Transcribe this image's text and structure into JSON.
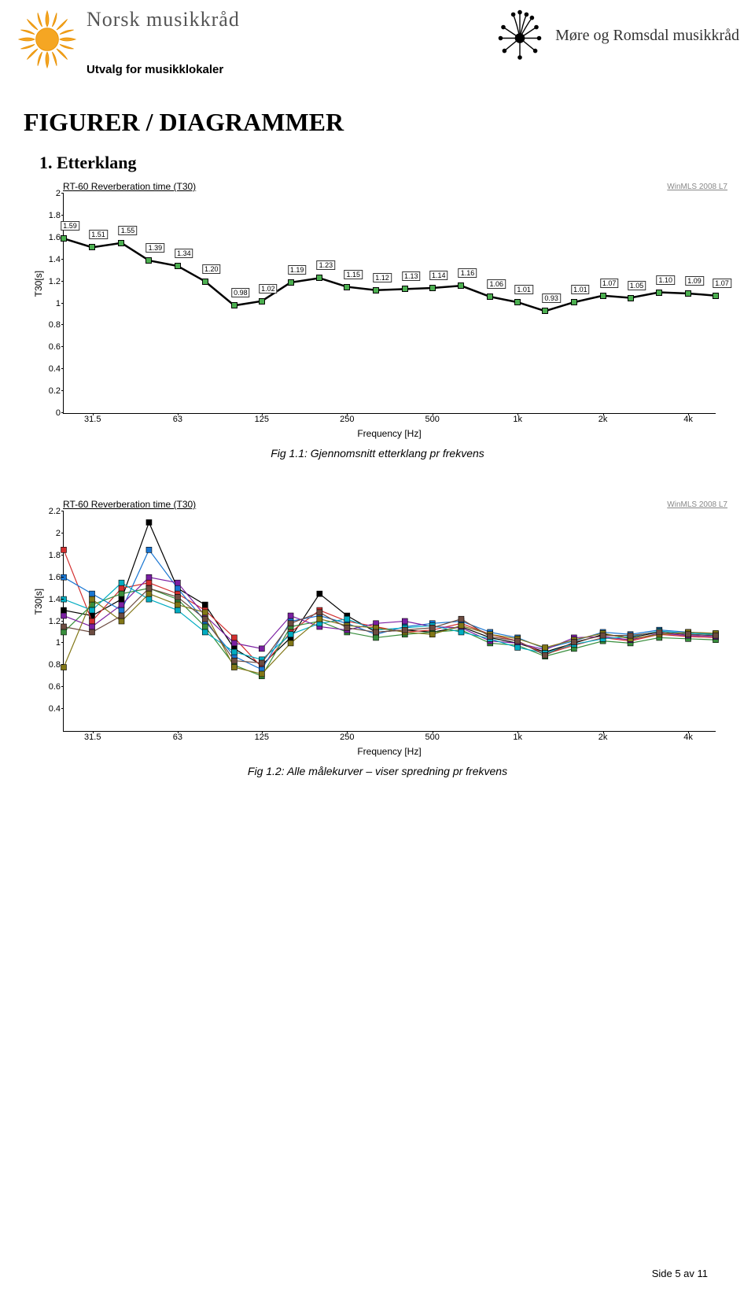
{
  "header": {
    "org1": "Norsk musikkråd",
    "subtitle": "Utvalg for musikklokaler",
    "org2": "Møre og Romsdal musikkråd"
  },
  "titles": {
    "main": "FIGURER / DIAGRAMMER",
    "section1": "1. Etterklang"
  },
  "chart1": {
    "type": "line",
    "title": "RT-60 Reverberation time (T30)",
    "watermark": "WinMLS 2008 L7",
    "ylabel": "T30[s]",
    "xlabel": "Frequency [Hz]",
    "ylim": [
      0,
      2.0
    ],
    "yticks": [
      0,
      0.2,
      0.4,
      0.6,
      0.8,
      1.0,
      1.2,
      1.4,
      1.6,
      1.8,
      2.0
    ],
    "xticks_labels": [
      "31.5",
      "63",
      "125",
      "250",
      "500",
      "1k",
      "2k",
      "4k"
    ],
    "xticks_logpos": [
      1.5,
      1.8,
      2.097,
      2.398,
      2.699,
      3.0,
      3.301,
      3.602
    ],
    "x_log_min": 1.398,
    "x_log_max": 3.699,
    "line_color": "#000000",
    "marker_color": "#4caf50",
    "background_color": "#ffffff",
    "point_labels": [
      "1.59",
      "1.51",
      "1.55",
      "1.39",
      "1.34",
      "1.20",
      "0.98",
      "1.02",
      "1.19",
      "1.23",
      "1.15",
      "1.12",
      "1.13",
      "1.14",
      "1.16",
      "1.06",
      "1.01",
      "0.93",
      "1.01",
      "1.07",
      "1.05",
      "1.10",
      "1.09",
      "1.07"
    ],
    "x_log": [
      1.398,
      1.498,
      1.602,
      1.699,
      1.8,
      1.897,
      2.0,
      2.097,
      2.199,
      2.301,
      2.398,
      2.5,
      2.602,
      2.699,
      2.801,
      2.903,
      3.0,
      3.097,
      3.199,
      3.301,
      3.398,
      3.5,
      3.602,
      3.699
    ],
    "y": [
      1.59,
      1.51,
      1.55,
      1.39,
      1.34,
      1.2,
      0.98,
      1.02,
      1.19,
      1.23,
      1.15,
      1.12,
      1.13,
      1.14,
      1.16,
      1.06,
      1.01,
      0.93,
      1.01,
      1.07,
      1.05,
      1.1,
      1.09,
      1.07
    ]
  },
  "caption1": "Fig 1.1: Gjennomsnitt etterklang pr frekvens",
  "chart2": {
    "type": "line-multi",
    "title": "RT-60 Reverberation time (T30)",
    "watermark": "WinMLS 2008 L7",
    "ylabel": "T30[s]",
    "xlabel": "Frequency [Hz]",
    "ylim": [
      0.2,
      2.2
    ],
    "yticks": [
      0.4,
      0.6,
      0.8,
      1.0,
      1.2,
      1.4,
      1.6,
      1.8,
      2.0,
      2.2
    ],
    "xticks_labels": [
      "31.5",
      "63",
      "125",
      "250",
      "500",
      "1k",
      "2k",
      "4k"
    ],
    "xticks_logpos": [
      1.5,
      1.8,
      2.097,
      2.398,
      2.699,
      3.0,
      3.301,
      3.602
    ],
    "x_log_min": 1.398,
    "x_log_max": 3.699,
    "background_color": "#ffffff",
    "x_log": [
      1.398,
      1.498,
      1.602,
      1.699,
      1.8,
      1.897,
      2.0,
      2.097,
      2.199,
      2.301,
      2.398,
      2.5,
      2.602,
      2.699,
      2.801,
      2.903,
      3.0,
      3.097,
      3.199,
      3.301,
      3.398,
      3.5,
      3.602,
      3.699
    ],
    "series": [
      {
        "color": "#000000",
        "y": [
          1.3,
          1.25,
          1.4,
          2.1,
          1.5,
          1.35,
          0.95,
          0.8,
          1.05,
          1.45,
          1.25,
          1.1,
          1.12,
          1.1,
          1.15,
          1.05,
          1.0,
          0.92,
          1.0,
          1.08,
          1.05,
          1.1,
          1.08,
          1.07
        ]
      },
      {
        "color": "#d32f2f",
        "y": [
          1.85,
          1.2,
          1.5,
          1.55,
          1.45,
          1.3,
          1.05,
          0.78,
          1.1,
          1.3,
          1.2,
          1.15,
          1.1,
          1.12,
          1.18,
          1.08,
          1.02,
          0.9,
          0.98,
          1.05,
          1.02,
          1.08,
          1.06,
          1.05
        ]
      },
      {
        "color": "#1976d2",
        "y": [
          1.6,
          1.45,
          1.3,
          1.85,
          1.5,
          1.2,
          0.88,
          0.76,
          1.2,
          1.25,
          1.18,
          1.08,
          1.15,
          1.18,
          1.2,
          1.1,
          1.05,
          0.95,
          1.02,
          1.1,
          1.08,
          1.12,
          1.1,
          1.08
        ]
      },
      {
        "color": "#388e3c",
        "y": [
          1.1,
          1.35,
          1.45,
          1.5,
          1.4,
          1.15,
          0.8,
          0.7,
          1.15,
          1.2,
          1.1,
          1.05,
          1.08,
          1.1,
          1.12,
          1.0,
          0.98,
          0.88,
          0.95,
          1.02,
          1.0,
          1.05,
          1.04,
          1.03
        ]
      },
      {
        "color": "#7b1fa2",
        "y": [
          1.25,
          1.15,
          1.35,
          1.6,
          1.55,
          1.25,
          1.0,
          0.95,
          1.25,
          1.15,
          1.12,
          1.18,
          1.2,
          1.15,
          1.14,
          1.02,
          1.0,
          0.94,
          1.05,
          1.06,
          1.03,
          1.09,
          1.07,
          1.06
        ]
      },
      {
        "color": "#00acc1",
        "y": [
          1.4,
          1.3,
          1.55,
          1.4,
          1.3,
          1.1,
          0.92,
          0.85,
          1.08,
          1.18,
          1.22,
          1.12,
          1.14,
          1.16,
          1.1,
          1.04,
          0.96,
          0.91,
          0.99,
          1.04,
          1.06,
          1.11,
          1.09,
          1.08
        ]
      },
      {
        "color": "#827717",
        "y": [
          0.78,
          1.4,
          1.2,
          1.45,
          1.35,
          1.28,
          0.78,
          0.72,
          1.0,
          1.22,
          1.16,
          1.14,
          1.1,
          1.08,
          1.16,
          1.08,
          1.04,
          0.96,
          1.03,
          1.09,
          1.04,
          1.08,
          1.1,
          1.09
        ]
      },
      {
        "color": "#6d4c41",
        "y": [
          1.15,
          1.1,
          1.25,
          1.5,
          1.42,
          1.22,
          0.84,
          0.82,
          1.18,
          1.28,
          1.14,
          1.1,
          1.12,
          1.14,
          1.22,
          1.06,
          1.02,
          0.89,
          1.01,
          1.07,
          1.07,
          1.1,
          1.08,
          1.07
        ]
      }
    ]
  },
  "caption2": "Fig 1.2: Alle målekurver – viser spredning pr frekvens",
  "footer": "Side 5 av 11",
  "colors": {
    "sun_fill": "#f5a623",
    "sun_stroke": "#e89000",
    "flower": "#000000"
  }
}
